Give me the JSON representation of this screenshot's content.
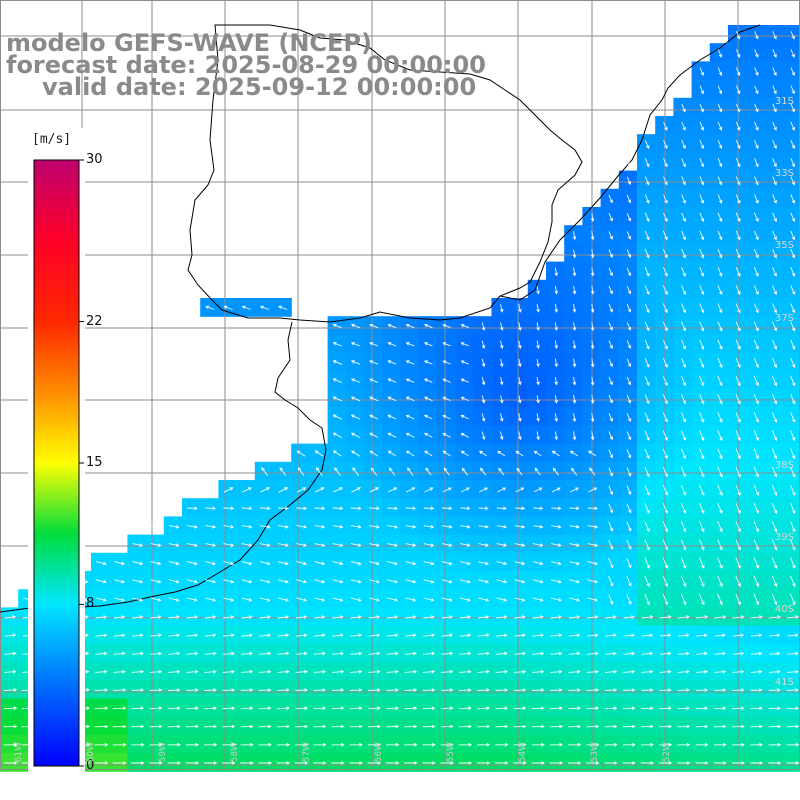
{
  "header": {
    "model": "modelo GEFS-WAVE (NCEP)",
    "forecast": "forecast date: 2025-08-29 00:00:00",
    "valid": "valid date: 2025-09-12 00:00:00"
  },
  "colorbar": {
    "unit": "[m/s]",
    "ticks": [
      {
        "label": "30",
        "value": 30
      },
      {
        "label": "22",
        "value": 22
      },
      {
        "label": "15",
        "value": 15
      },
      {
        "label": "8",
        "value": 8
      },
      {
        "label": "0",
        "value": 0
      }
    ]
  },
  "map_labels": {
    "latitudes": [
      "31S",
      "33S",
      "35S",
      "37S",
      "38S",
      "39S",
      "40S",
      "41S"
    ],
    "longitudes": [
      "61W",
      "60W",
      "59W",
      "58W",
      "57W",
      "56W",
      "55W",
      "54W",
      "53W",
      "52W"
    ]
  },
  "colors": {
    "grid": "#8c8c8c",
    "coast": "#000000",
    "arrow": "#ffffff",
    "title": "#8a8a8a"
  }
}
